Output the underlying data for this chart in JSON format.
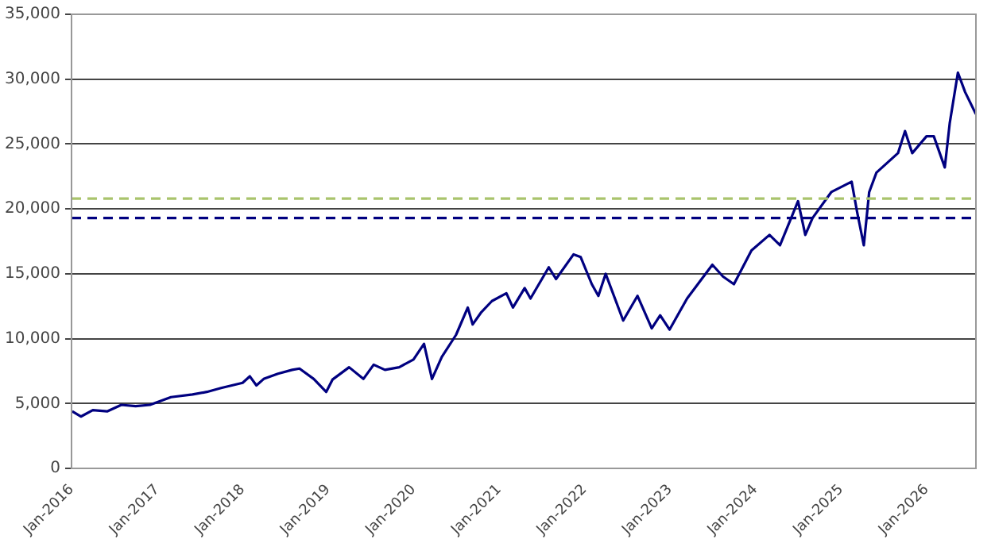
{
  "chart_data": {
    "type": "line",
    "x": [
      "2016-01-04",
      "2016-02-10",
      "2016-04-01",
      "2016-06-01",
      "2016-08-01",
      "2016-10-01",
      "2016-12-01",
      "2017-03-01",
      "2017-06-01",
      "2017-08-01",
      "2017-10-01",
      "2018-01-01",
      "2018-02-01",
      "2018-03-01",
      "2018-04-01",
      "2018-06-01",
      "2018-08-01",
      "2018-09-01",
      "2018-11-01",
      "2018-12-24",
      "2019-01-20",
      "2019-04-01",
      "2019-06-01",
      "2019-07-15",
      "2019-09-01",
      "2019-11-01",
      "2020-01-01",
      "2020-02-15",
      "2020-03-20",
      "2020-05-01",
      "2020-07-01",
      "2020-08-20",
      "2020-09-10",
      "2020-10-15",
      "2020-12-01",
      "2021-02-01",
      "2021-03-01",
      "2021-04-20",
      "2021-05-15",
      "2021-08-01",
      "2021-09-01",
      "2021-11-15",
      "2021-12-15",
      "2022-02-01",
      "2022-03-01",
      "2022-04-01",
      "2022-06-15",
      "2022-08-15",
      "2022-10-15",
      "2022-11-20",
      "2022-12-30",
      "2023-03-15",
      "2023-07-01",
      "2023-08-15",
      "2023-10-01",
      "2023-12-15",
      "2024-03-01",
      "2024-04-15",
      "2024-07-01",
      "2024-08-01",
      "2024-09-01",
      "2024-11-20",
      "2025-02-15",
      "2025-03-10",
      "2025-04-08",
      "2025-05-01",
      "2025-06-01",
      "2025-09-01",
      "2025-10-01",
      "2025-11-01",
      "2026-01-01",
      "2026-02-01",
      "2026-03-20",
      "2026-04-10",
      "2026-05-15",
      "2026-06-15",
      "2026-07-31"
    ],
    "series": [
      {
        "color": "#000080",
        "values": [
          4400,
          4000,
          4500,
          4400,
          4900,
          4800,
          4900,
          5500,
          5700,
          5900,
          6200,
          6600,
          7100,
          6400,
          6900,
          7300,
          7600,
          7700,
          6900,
          5900,
          6850,
          7800,
          6900,
          8000,
          7600,
          7800,
          8400,
          9600,
          6900,
          8600,
          10300,
          12400,
          11100,
          12000,
          12900,
          13500,
          12400,
          13900,
          13100,
          15500,
          14600,
          16500,
          16300,
          14200,
          13300,
          15000,
          11400,
          13300,
          10800,
          11800,
          10700,
          13100,
          15700,
          14800,
          14200,
          16800,
          18000,
          17200,
          20600,
          18000,
          19300,
          21300,
          22100,
          19800,
          17200,
          21300,
          22800,
          24300,
          26000,
          24300,
          25600,
          25600,
          23200,
          26600,
          30500,
          29000,
          27300
        ]
      }
    ],
    "xlim": [
      "2016-01-01",
      "2026-07-31"
    ],
    "xticks": [
      {
        "value": "2016-01-01",
        "label": "Jan-2016"
      },
      {
        "value": "2017-01-01",
        "label": "Jan-2017"
      },
      {
        "value": "2018-01-01",
        "label": "Jan-2018"
      },
      {
        "value": "2019-01-01",
        "label": "Jan-2019"
      },
      {
        "value": "2020-01-01",
        "label": "Jan-2020"
      },
      {
        "value": "2021-01-01",
        "label": "Jan-2021"
      },
      {
        "value": "2022-01-01",
        "label": "Jan-2022"
      },
      {
        "value": "2023-01-01",
        "label": "Jan-2023"
      },
      {
        "value": "2024-01-01",
        "label": "Jan-2024"
      },
      {
        "value": "2025-01-01",
        "label": "Jan-2025"
      },
      {
        "value": "2026-01-01",
        "label": "Jan-2026"
      }
    ],
    "ylim": [
      0,
      35000
    ],
    "yticks": [
      0,
      {
        "value": 5000,
        "label": "5,000"
      },
      {
        "value": 10000,
        "label": "10,000"
      },
      {
        "value": 15000,
        "label": "15,000"
      },
      {
        "value": 20000,
        "label": "20,000"
      },
      {
        "value": 25000,
        "label": "25,000"
      },
      {
        "value": 30000,
        "label": "30,000"
      },
      {
        "value": 35000,
        "label": "35,000"
      }
    ],
    "ref_lines": [
      {
        "axis": "y",
        "value": 20800,
        "color": "#a9c46c",
        "line_style": "dashed"
      },
      {
        "axis": "y",
        "value": 19300,
        "color": "#000080",
        "line_style": "dashed"
      }
    ],
    "grid": "y",
    "legend": false,
    "marker": "none",
    "line_style": "solid"
  }
}
